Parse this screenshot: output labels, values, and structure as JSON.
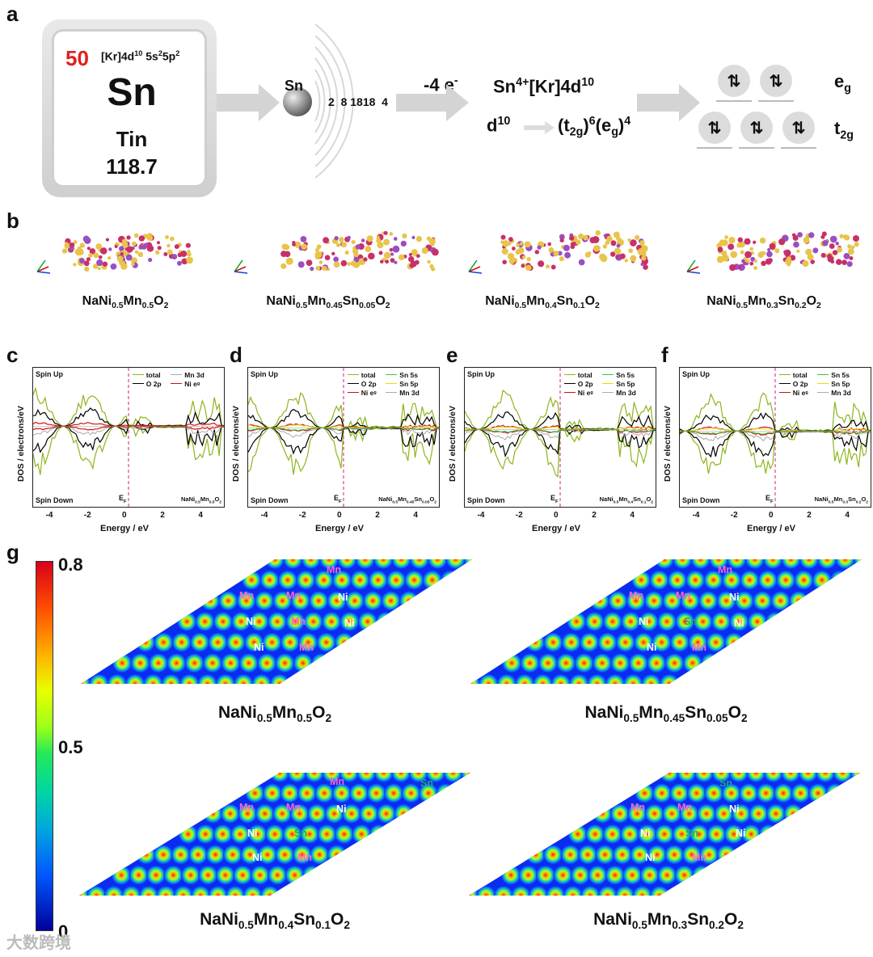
{
  "panels": {
    "a": "a",
    "b": "b",
    "c": "c",
    "d": "d",
    "e": "e",
    "f": "f",
    "g": "g"
  },
  "element": {
    "number": "50",
    "config_base": "[Kr]4d",
    "config_sup1": "10",
    "config_mid": " 5s",
    "config_sup2": "2",
    "config_mid2": "5p",
    "config_sup3": "2",
    "symbol": "Sn",
    "name": "Tin",
    "mass": "118.7"
  },
  "shell": {
    "symbol": "Sn",
    "counts": "2  8 1818  4"
  },
  "ionization": {
    "label": "-4 e",
    "sup": "-"
  },
  "ion": {
    "base": "Sn",
    "sup": "4+",
    "rest": "[Kr]4d",
    "sup2": "10"
  },
  "d10": {
    "label": "d",
    "sup": "10",
    "t2g_open": "(t",
    "t2g_sub": "2g",
    "t2g_close": ")",
    "t2g_sup": "6",
    "eg_open": "(e",
    "eg_sub": "g",
    "eg_close": ")",
    "eg_sup": "4"
  },
  "orbitals": {
    "arrow": "⇅",
    "eg": "e",
    "eg_sub": "g",
    "t2g": "t",
    "t2g_sub": "2g"
  },
  "compounds": [
    {
      "a": "NaNi",
      "b": "0.5",
      "c": "Mn",
      "d": "0.5",
      "e": "O",
      "f": "2",
      "g": "",
      "h": ""
    },
    {
      "a": "NaNi",
      "b": "0.5",
      "c": "Mn",
      "d": "0.45",
      "e": "Sn",
      "f": "0.05",
      "g": "O",
      "h": "2"
    },
    {
      "a": "NaNi",
      "b": "0.5",
      "c": "Mn",
      "d": "0.4",
      "e": "Sn",
      "f": "0.1",
      "g": "O",
      "h": "2"
    },
    {
      "a": "NaNi",
      "b": "0.5",
      "c": "Mn",
      "d": "0.3",
      "e": "Sn",
      "f": "0.2",
      "g": "O",
      "h": "2"
    }
  ],
  "dos": {
    "ylabel": "DOS / electrons/eV",
    "xlabel": "Energy / eV",
    "spin_up": "Spin Up",
    "spin_down": "Spin Down",
    "ef": "E",
    "ef_sub": "F",
    "xticks": [
      "-4",
      "-2",
      "0",
      "2",
      "4"
    ],
    "legend_c": [
      "total",
      "Mn 3d",
      "O 2p",
      "Ni e"
    ],
    "legend_def": [
      "total",
      "Sn 5s",
      "O 2p",
      "Sn 5p",
      "Ni e",
      "Mn 3d"
    ],
    "legend_sub_g": "g",
    "colors": {
      "total": "#8db51e",
      "o2p": "#000000",
      "ni": "#d01010",
      "sn5s": "#2ecc40",
      "sn5p": "#e8e000",
      "mn3d": "#aaaaaa"
    }
  },
  "colorbar": {
    "max": "0.8",
    "mid": "0.5",
    "min": "0"
  },
  "atoms": {
    "mn": "Mn",
    "ni": "Ni",
    "sn": "Sn"
  },
  "watermark": "大数跨境"
}
